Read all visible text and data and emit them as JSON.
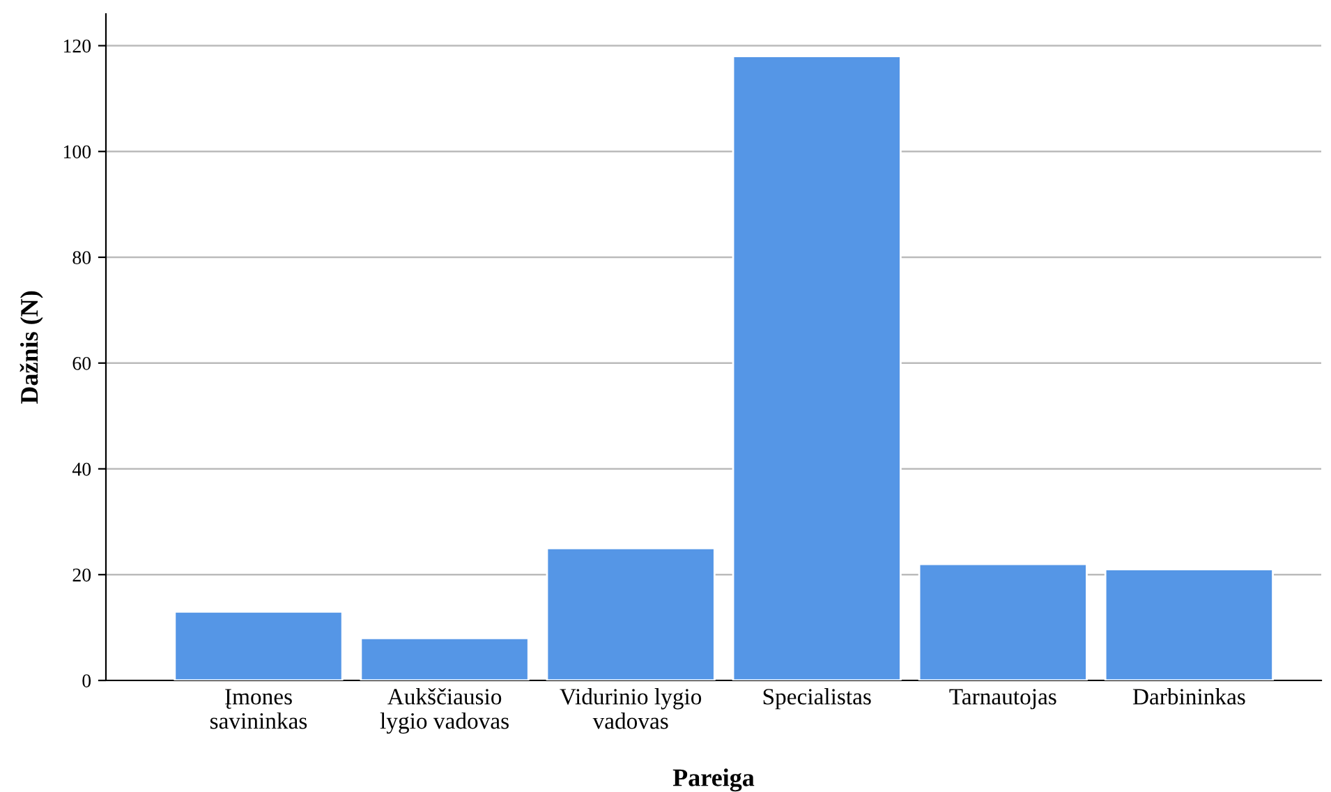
{
  "chart_data": {
    "type": "bar",
    "xlabel": "Pareiga",
    "ylabel": "Dažnis (N)",
    "categories": [
      "Įmones\nsavininkas",
      "Aukščiausio\nlygio vadovas",
      "Vidurinio lygio\nvadovas",
      "Specialistas",
      "Tarnautojas",
      "Darbininkas"
    ],
    "values": [
      13,
      8,
      25,
      118,
      22,
      21
    ],
    "color": "#5596e6",
    "ylim": [
      0,
      126
    ],
    "yticks": [
      0,
      20,
      40,
      60,
      80,
      100,
      120
    ],
    "grid": "y"
  }
}
